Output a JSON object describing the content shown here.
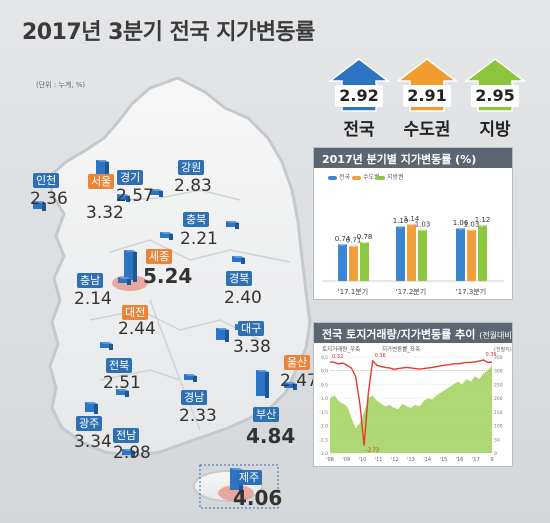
{
  "title": "2017년 3분기 전국 지가변동률",
  "unit": "(단위 : 누계, %)",
  "arrows": [
    {
      "value": "2.92",
      "label": "전국",
      "color": "#2c73c2"
    },
    {
      "value": "2.91",
      "label": "수도권",
      "color": "#ef9b2d"
    },
    {
      "value": "2.95",
      "label": "지방",
      "color": "#8cc43e"
    }
  ],
  "regions": [
    {
      "name": "인천",
      "value": "2.36"
    },
    {
      "name": "서울",
      "value": "3.32"
    },
    {
      "name": "경기",
      "value": "2.57"
    },
    {
      "name": "강원",
      "value": "2.83"
    },
    {
      "name": "충북",
      "value": "2.21"
    },
    {
      "name": "세종",
      "value": "5.24"
    },
    {
      "name": "충남",
      "value": "2.14"
    },
    {
      "name": "경북",
      "value": "2.40"
    },
    {
      "name": "대전",
      "value": "2.44"
    },
    {
      "name": "대구",
      "value": "3.38"
    },
    {
      "name": "전북",
      "value": "2.51"
    },
    {
      "name": "울산",
      "value": "2.47"
    },
    {
      "name": "경남",
      "value": "2.33"
    },
    {
      "name": "부산",
      "value": "4.84"
    },
    {
      "name": "광주",
      "value": "3.34"
    },
    {
      "name": "전남",
      "value": "2.98"
    },
    {
      "name": "제주",
      "value": "4.06"
    }
  ],
  "chart_data": [
    {
      "type": "bar",
      "title": "2017년 분기별 지가변동률 (%)",
      "categories": [
        "'17.1분기",
        "'17.2분기",
        "'17.3분기"
      ],
      "series": [
        {
          "name": "전국",
          "values": [
            0.74,
            1.1,
            1.06
          ],
          "color": "#3a86d0"
        },
        {
          "name": "수도권",
          "values": [
            0.71,
            1.14,
            1.03
          ],
          "color": "#f0a03a"
        },
        {
          "name": "지방권",
          "values": [
            0.78,
            1.03,
            1.12
          ],
          "color": "#8dc63f"
        }
      ],
      "value_labels": [
        "0.74",
        "0.71",
        "0.78",
        "1.10",
        "1.14",
        "1.03",
        "1.06",
        "1.03",
        "1.12"
      ]
    },
    {
      "type": "line",
      "title": "전국 토지거래량/지가변동률 추이",
      "subtitle": "(전월대비)",
      "legend": [
        "토지거래량_우축",
        "지가변동률_좌축"
      ],
      "right_axis_label": "(천필지)",
      "x_ticks": [
        "'08",
        "'09",
        "'10",
        "'11",
        "'12",
        "'13",
        "'14",
        "'15",
        "'16",
        "'17",
        "9"
      ],
      "y_left_ticks": [
        "0.5",
        "0.0",
        "-0.5",
        "-1.0",
        "-1.5",
        "-2.0",
        "-2.5",
        "-3.0"
      ],
      "y_left_lim": [
        -3.0,
        0.5
      ],
      "y_right_ticks": [
        "350",
        "300",
        "250",
        "200",
        "150",
        "100",
        "50",
        "0"
      ],
      "y_right_lim": [
        0,
        350
      ],
      "annotations": [
        "0.32",
        "0.36",
        "-2.73",
        "0.39"
      ],
      "land_price_change": [
        0.32,
        0.3,
        0.25,
        0.28,
        0.2,
        0.1,
        -0.2,
        -1.2,
        -2.73,
        -0.8,
        0.36,
        0.2,
        0.15,
        0.12,
        0.1,
        0.05,
        0.08,
        0.1,
        0.12,
        0.1,
        0.08,
        0.06,
        0.08,
        0.1,
        0.12,
        0.15,
        0.18,
        0.2,
        0.22,
        0.25,
        0.25,
        0.28,
        0.3,
        0.3,
        0.32,
        0.35,
        0.39,
        0.3,
        0.32
      ],
      "transaction_volume": [
        200,
        210,
        190,
        180,
        170,
        130,
        90,
        110,
        150,
        200,
        210,
        190,
        180,
        170,
        175,
        165,
        160,
        180,
        170,
        165,
        175,
        170,
        190,
        200,
        195,
        210,
        220,
        230,
        240,
        250,
        260,
        250,
        270,
        260,
        280,
        270,
        290,
        300,
        320
      ]
    }
  ]
}
